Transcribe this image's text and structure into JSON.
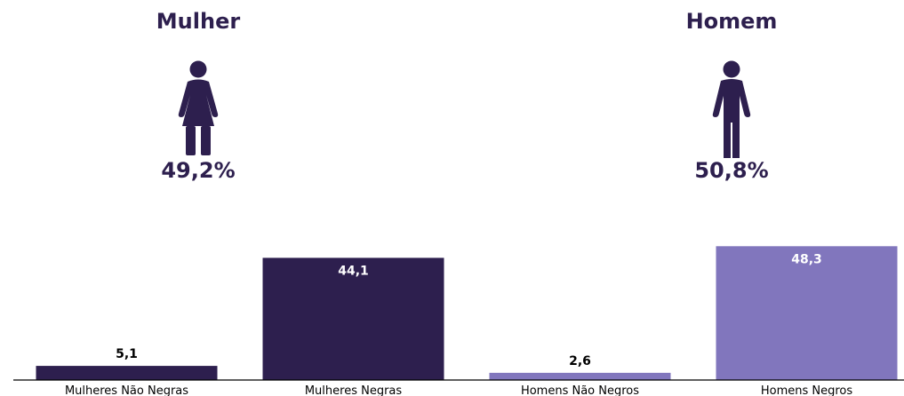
{
  "stats": {
    "women": {
      "title": "Mulher",
      "value": "49,2%",
      "icon": "female-figure-icon"
    },
    "men": {
      "title": "Homem",
      "value": "50,8%",
      "icon": "male-figure-icon"
    }
  },
  "colors": {
    "dark": "#2d1f4e",
    "light": "#8176bd",
    "axis": "#000000"
  },
  "chart_data": {
    "type": "bar",
    "categories": [
      "Mulheres Não Negras",
      "Mulheres Negras",
      "Homens Não Negros",
      "Homens Negros"
    ],
    "values": [
      5.1,
      44.1,
      2.6,
      48.3
    ],
    "value_labels": [
      "5,1",
      "44,1",
      "2,6",
      "48,3"
    ],
    "bar_colors": [
      "#2d1f4e",
      "#2d1f4e",
      "#8176bd",
      "#8176bd"
    ],
    "title": "",
    "xlabel": "",
    "ylabel": "",
    "ylim": [
      0,
      50
    ],
    "grid": false,
    "y_axis_visible": false
  }
}
